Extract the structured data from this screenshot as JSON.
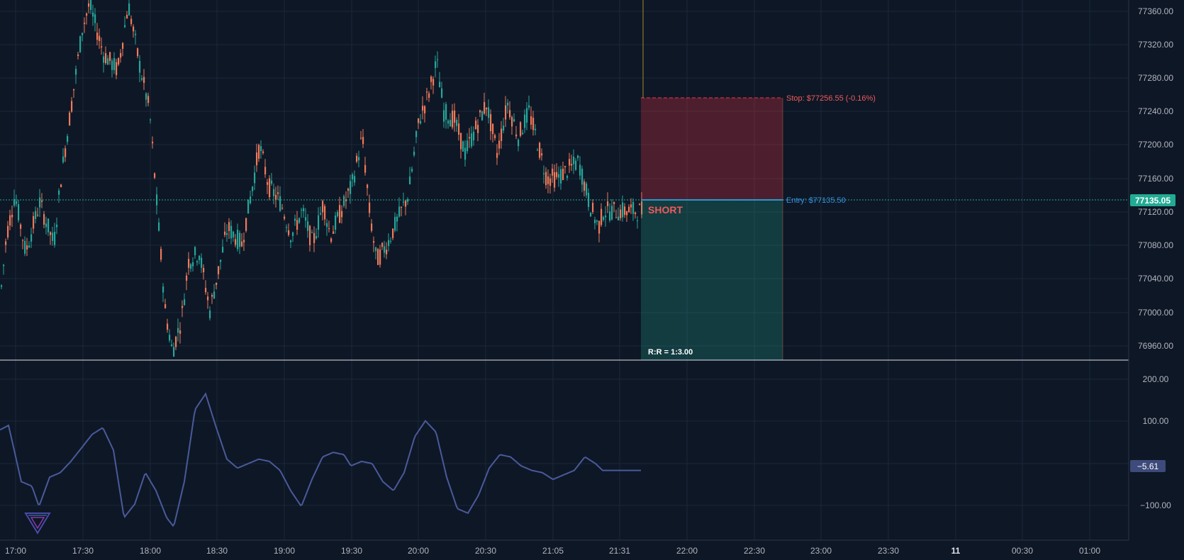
{
  "colors": {
    "background": "#0e1726",
    "grid": "#1b2738",
    "up": "#26a69a",
    "down": "#ef7a5a",
    "axis_text": "#b2b5be",
    "stop": "#f23645",
    "entry": "#2f8fdd",
    "indicator": "#4a5a9a",
    "price_tag": "#22ab94",
    "indicator_tag": "#3d4a7a",
    "cursor": "#a38a28"
  },
  "price_axis": {
    "ticks": [
      "77360.00",
      "77320.00",
      "77280.00",
      "77240.00",
      "77200.00",
      "77160.00",
      "77120.00",
      "77080.00",
      "77040.00",
      "77000.00",
      "76960.00"
    ],
    "current_price_label": "77135.05"
  },
  "indicator_axis": {
    "ticks": [
      "200.00",
      "100.00",
      "−100.00"
    ],
    "current_value_label": "−5.61"
  },
  "time_axis": {
    "labels": [
      "17:00",
      "17:30",
      "18:00",
      "18:30",
      "19:00",
      "19:30",
      "20:00",
      "20:30",
      "21:05",
      "21:31",
      "22:00",
      "22:30",
      "23:00",
      "23:30",
      "11",
      "00:30",
      "01:00"
    ]
  },
  "position": {
    "side_label": "SHORT",
    "stop_label": "Stop: $77256.55 (-0.16%)",
    "entry_label": "Entry: $77135.50",
    "rr_label": "R:R = 1:3.00",
    "stop_price": 77256.55,
    "entry_price": 77135.5
  },
  "chart_data": {
    "type": "candlestick",
    "ylim": [
      76940,
      77375
    ],
    "indicator_ylim": [
      -160,
      240
    ],
    "current_price": 77135.05,
    "indicator_value": -5.61,
    "price_path": [
      [
        0,
        77020
      ],
      [
        8,
        77090
      ],
      [
        20,
        77140
      ],
      [
        35,
        77070
      ],
      [
        55,
        77130
      ],
      [
        75,
        77080
      ],
      [
        85,
        77160
      ],
      [
        100,
        77250
      ],
      [
        115,
        77340
      ],
      [
        125,
        77370
      ],
      [
        145,
        77310
      ],
      [
        165,
        77290
      ],
      [
        180,
        77370
      ],
      [
        195,
        77300
      ],
      [
        210,
        77240
      ],
      [
        220,
        77130
      ],
      [
        232,
        77000
      ],
      [
        242,
        76950
      ],
      [
        255,
        76990
      ],
      [
        265,
        77060
      ],
      [
        280,
        77070
      ],
      [
        295,
        77000
      ],
      [
        305,
        77040
      ],
      [
        320,
        77100
      ],
      [
        340,
        77080
      ],
      [
        355,
        77150
      ],
      [
        365,
        77200
      ],
      [
        378,
        77150
      ],
      [
        395,
        77130
      ],
      [
        410,
        77090
      ],
      [
        425,
        77120
      ],
      [
        440,
        77080
      ],
      [
        455,
        77130
      ],
      [
        465,
        77090
      ],
      [
        480,
        77120
      ],
      [
        495,
        77150
      ],
      [
        510,
        77210
      ],
      [
        520,
        77120
      ],
      [
        530,
        77060
      ],
      [
        545,
        77080
      ],
      [
        560,
        77110
      ],
      [
        575,
        77140
      ],
      [
        590,
        77230
      ],
      [
        603,
        77260
      ],
      [
        615,
        77300
      ],
      [
        625,
        77240
      ],
      [
        640,
        77230
      ],
      [
        655,
        77190
      ],
      [
        670,
        77220
      ],
      [
        685,
        77250
      ],
      [
        700,
        77190
      ],
      [
        715,
        77250
      ],
      [
        730,
        77210
      ],
      [
        745,
        77240
      ],
      [
        755,
        77210
      ],
      [
        770,
        77160
      ],
      [
        785,
        77160
      ],
      [
        800,
        77170
      ],
      [
        815,
        77180
      ],
      [
        830,
        77130
      ],
      [
        843,
        77100
      ],
      [
        850,
        77120
      ]
    ],
    "indicator_path": [
      [
        0,
        85
      ],
      [
        12,
        95
      ],
      [
        20,
        40
      ],
      [
        30,
        -30
      ],
      [
        45,
        -40
      ],
      [
        55,
        -85
      ],
      [
        70,
        -20
      ],
      [
        85,
        -10
      ],
      [
        100,
        15
      ],
      [
        115,
        45
      ],
      [
        130,
        75
      ],
      [
        145,
        90
      ],
      [
        160,
        40
      ],
      [
        175,
        -110
      ],
      [
        190,
        -80
      ],
      [
        205,
        -10
      ],
      [
        220,
        -50
      ],
      [
        235,
        -110
      ],
      [
        245,
        -130
      ],
      [
        260,
        -30
      ],
      [
        275,
        130
      ],
      [
        290,
        165
      ],
      [
        305,
        90
      ],
      [
        320,
        20
      ],
      [
        335,
        0
      ],
      [
        350,
        10
      ],
      [
        365,
        20
      ],
      [
        380,
        15
      ],
      [
        395,
        -5
      ],
      [
        410,
        -50
      ],
      [
        425,
        -85
      ],
      [
        440,
        -25
      ],
      [
        455,
        25
      ],
      [
        470,
        35
      ],
      [
        485,
        30
      ],
      [
        495,
        5
      ],
      [
        510,
        15
      ],
      [
        525,
        10
      ],
      [
        540,
        -30
      ],
      [
        555,
        -50
      ],
      [
        570,
        -10
      ],
      [
        585,
        70
      ],
      [
        600,
        105
      ],
      [
        615,
        80
      ],
      [
        630,
        -20
      ],
      [
        645,
        -90
      ],
      [
        660,
        -100
      ],
      [
        675,
        -60
      ],
      [
        690,
        0
      ],
      [
        705,
        30
      ],
      [
        720,
        25
      ],
      [
        735,
        5
      ],
      [
        750,
        -5
      ],
      [
        765,
        -10
      ],
      [
        780,
        -25
      ],
      [
        795,
        -15
      ],
      [
        810,
        -5
      ],
      [
        825,
        25
      ],
      [
        840,
        10
      ],
      [
        850,
        -5
      ]
    ]
  }
}
